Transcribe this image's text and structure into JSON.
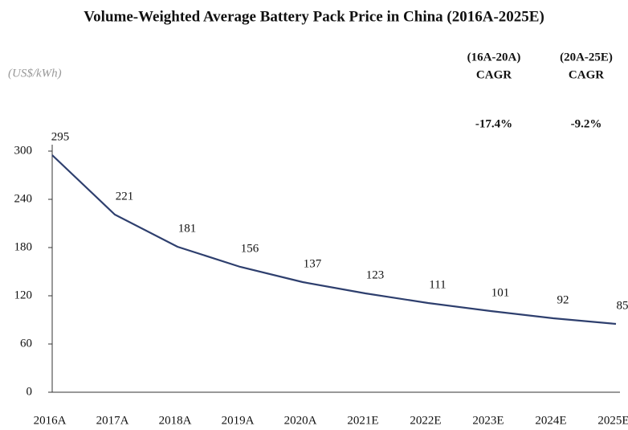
{
  "chart_data": {
    "type": "line",
    "title": "Volume-Weighted Average Battery Pack Price in China (2016A-2025E)",
    "unit": "(US$/kWh)",
    "categories": [
      "2016A",
      "2017A",
      "2018A",
      "2019A",
      "2020A",
      "2021E",
      "2022E",
      "2023E",
      "2024E",
      "2025E"
    ],
    "series": [
      {
        "name": "Battery Pack Price",
        "color": "#2e3f6e",
        "values": [
          295,
          221,
          181,
          156,
          137,
          123,
          111,
          101,
          92,
          85
        ]
      }
    ],
    "ylim": [
      0,
      300
    ],
    "yticks": [
      0,
      60,
      120,
      180,
      240,
      300
    ],
    "grid": false,
    "annotations": [
      {
        "period": "(16A-20A)",
        "label": "CAGR",
        "value": "-17.4%"
      },
      {
        "period": "(20A-25E)",
        "label": "CAGR",
        "value": "-9.2%"
      }
    ]
  }
}
